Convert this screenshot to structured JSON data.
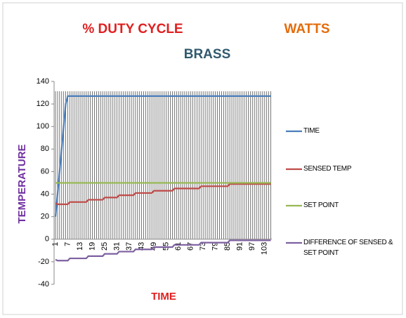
{
  "chart_data": {
    "type": "line",
    "title": "BRASS",
    "annotations": [
      "% DUTY CYCLE",
      "WATTS"
    ],
    "xlabel": "TIME",
    "ylabel": "TEMPERATURE",
    "categories": [
      1,
      null,
      null,
      null,
      null,
      null,
      7,
      null,
      null,
      null,
      null,
      null,
      13,
      null,
      null,
      null,
      null,
      null,
      19,
      null,
      null,
      null,
      null,
      null,
      25,
      null,
      null,
      null,
      null,
      null,
      31,
      null,
      null,
      null,
      null,
      null,
      37,
      null,
      null,
      null,
      null,
      null,
      43,
      null,
      null,
      null,
      null,
      null,
      49,
      null,
      null,
      null,
      null,
      null,
      55,
      null,
      null,
      null,
      null,
      null,
      61,
      null,
      null,
      null,
      null,
      null,
      67,
      null,
      null,
      null,
      null,
      null,
      73,
      null,
      null,
      null,
      null,
      null,
      79,
      null,
      null,
      null,
      null,
      null,
      85,
      null,
      null,
      null,
      null,
      null,
      91,
      null,
      null,
      null,
      null,
      null,
      97,
      null,
      null,
      null,
      null,
      null,
      103,
      null,
      null,
      null
    ],
    "series": [
      {
        "name": "TIME",
        "color": "#4a7ebb",
        "values": [
          20,
          40,
          60,
          80,
          100,
          120,
          127,
          127,
          127,
          127,
          127,
          127,
          127,
          127,
          127,
          127,
          127,
          127,
          127,
          127,
          127,
          127,
          127,
          127,
          127,
          127,
          127,
          127,
          127,
          127,
          127,
          127,
          127,
          127,
          127,
          127,
          127,
          127,
          127,
          127,
          127,
          127,
          127,
          127,
          127,
          127,
          127,
          127,
          127,
          127,
          127,
          127,
          127,
          127,
          127,
          127,
          127,
          127,
          127,
          127,
          127,
          127,
          127,
          127,
          127,
          127,
          127,
          127,
          127,
          127,
          127,
          127,
          127,
          127,
          127,
          127,
          127,
          127,
          127,
          127,
          127,
          127,
          127,
          127,
          127,
          127,
          127,
          127,
          127,
          127,
          127,
          127,
          127,
          127,
          127,
          127,
          127,
          127,
          127,
          127,
          127,
          127,
          127,
          127,
          127,
          127
        ]
      },
      {
        "name": "SENSED TEMP",
        "color": "#be4b48",
        "values": [
          32,
          31,
          31,
          31,
          31,
          31,
          31,
          33,
          33,
          33,
          33,
          33,
          33,
          33,
          33,
          33,
          35,
          35,
          35,
          35,
          35,
          35,
          35,
          35,
          37,
          37,
          37,
          37,
          37,
          37,
          37,
          39,
          39,
          39,
          39,
          39,
          39,
          39,
          39,
          41,
          41,
          41,
          41,
          41,
          41,
          41,
          41,
          41,
          43,
          43,
          43,
          43,
          43,
          43,
          43,
          43,
          43,
          43,
          45,
          45,
          45,
          45,
          45,
          45,
          45,
          45,
          45,
          45,
          45,
          45,
          45,
          47,
          47,
          47,
          47,
          47,
          47,
          47,
          47,
          47,
          47,
          47,
          47,
          47,
          47,
          49,
          49,
          49,
          49,
          49,
          49,
          49,
          49,
          49,
          49,
          49,
          49,
          49,
          49,
          49,
          49,
          49,
          49,
          49,
          49,
          49
        ]
      },
      {
        "name": "SET POINT",
        "color": "#98b954",
        "values": [
          50,
          50,
          50,
          50,
          50,
          50,
          50,
          50,
          50,
          50,
          50,
          50,
          50,
          50,
          50,
          50,
          50,
          50,
          50,
          50,
          50,
          50,
          50,
          50,
          50,
          50,
          50,
          50,
          50,
          50,
          50,
          50,
          50,
          50,
          50,
          50,
          50,
          50,
          50,
          50,
          50,
          50,
          50,
          50,
          50,
          50,
          50,
          50,
          50,
          50,
          50,
          50,
          50,
          50,
          50,
          50,
          50,
          50,
          50,
          50,
          50,
          50,
          50,
          50,
          50,
          50,
          50,
          50,
          50,
          50,
          50,
          50,
          50,
          50,
          50,
          50,
          50,
          50,
          50,
          50,
          50,
          50,
          50,
          50,
          50,
          50,
          50,
          50,
          50,
          50,
          50,
          50,
          50,
          50,
          50,
          50,
          50,
          50,
          50,
          50,
          50,
          50,
          50,
          50,
          50,
          50
        ]
      },
      {
        "name": "DIFFERENCE OF SENSED & SET POINT",
        "color": "#7d60a0",
        "values": [
          -18,
          -19,
          -19,
          -19,
          -19,
          -19,
          -19,
          -17,
          -17,
          -17,
          -17,
          -17,
          -17,
          -17,
          -17,
          -17,
          -15,
          -15,
          -15,
          -15,
          -15,
          -15,
          -15,
          -15,
          -13,
          -13,
          -13,
          -13,
          -13,
          -13,
          -13,
          -11,
          -11,
          -11,
          -11,
          -11,
          -11,
          -11,
          -11,
          -9,
          -9,
          -9,
          -9,
          -9,
          -9,
          -9,
          -9,
          -9,
          -7,
          -7,
          -7,
          -7,
          -7,
          -7,
          -7,
          -7,
          -7,
          -7,
          -5,
          -5,
          -5,
          -5,
          -5,
          -5,
          -5,
          -5,
          -5,
          -5,
          -5,
          -5,
          -5,
          -3,
          -3,
          -3,
          -3,
          -3,
          -3,
          -3,
          -3,
          -3,
          -3,
          -3,
          -3,
          -3,
          -3,
          -1,
          -1,
          -1,
          -1,
          -1,
          -1,
          -1,
          -1,
          -1,
          -1,
          -1,
          -1,
          -1,
          -1,
          -1,
          -1,
          -1,
          -1,
          -1,
          -1,
          -1
        ]
      }
    ],
    "ylim": [
      -40,
      140
    ],
    "yticks": [
      -40,
      -20,
      0,
      20,
      40,
      60,
      80,
      100,
      120,
      140
    ],
    "xgrid": true,
    "legend": "right"
  }
}
